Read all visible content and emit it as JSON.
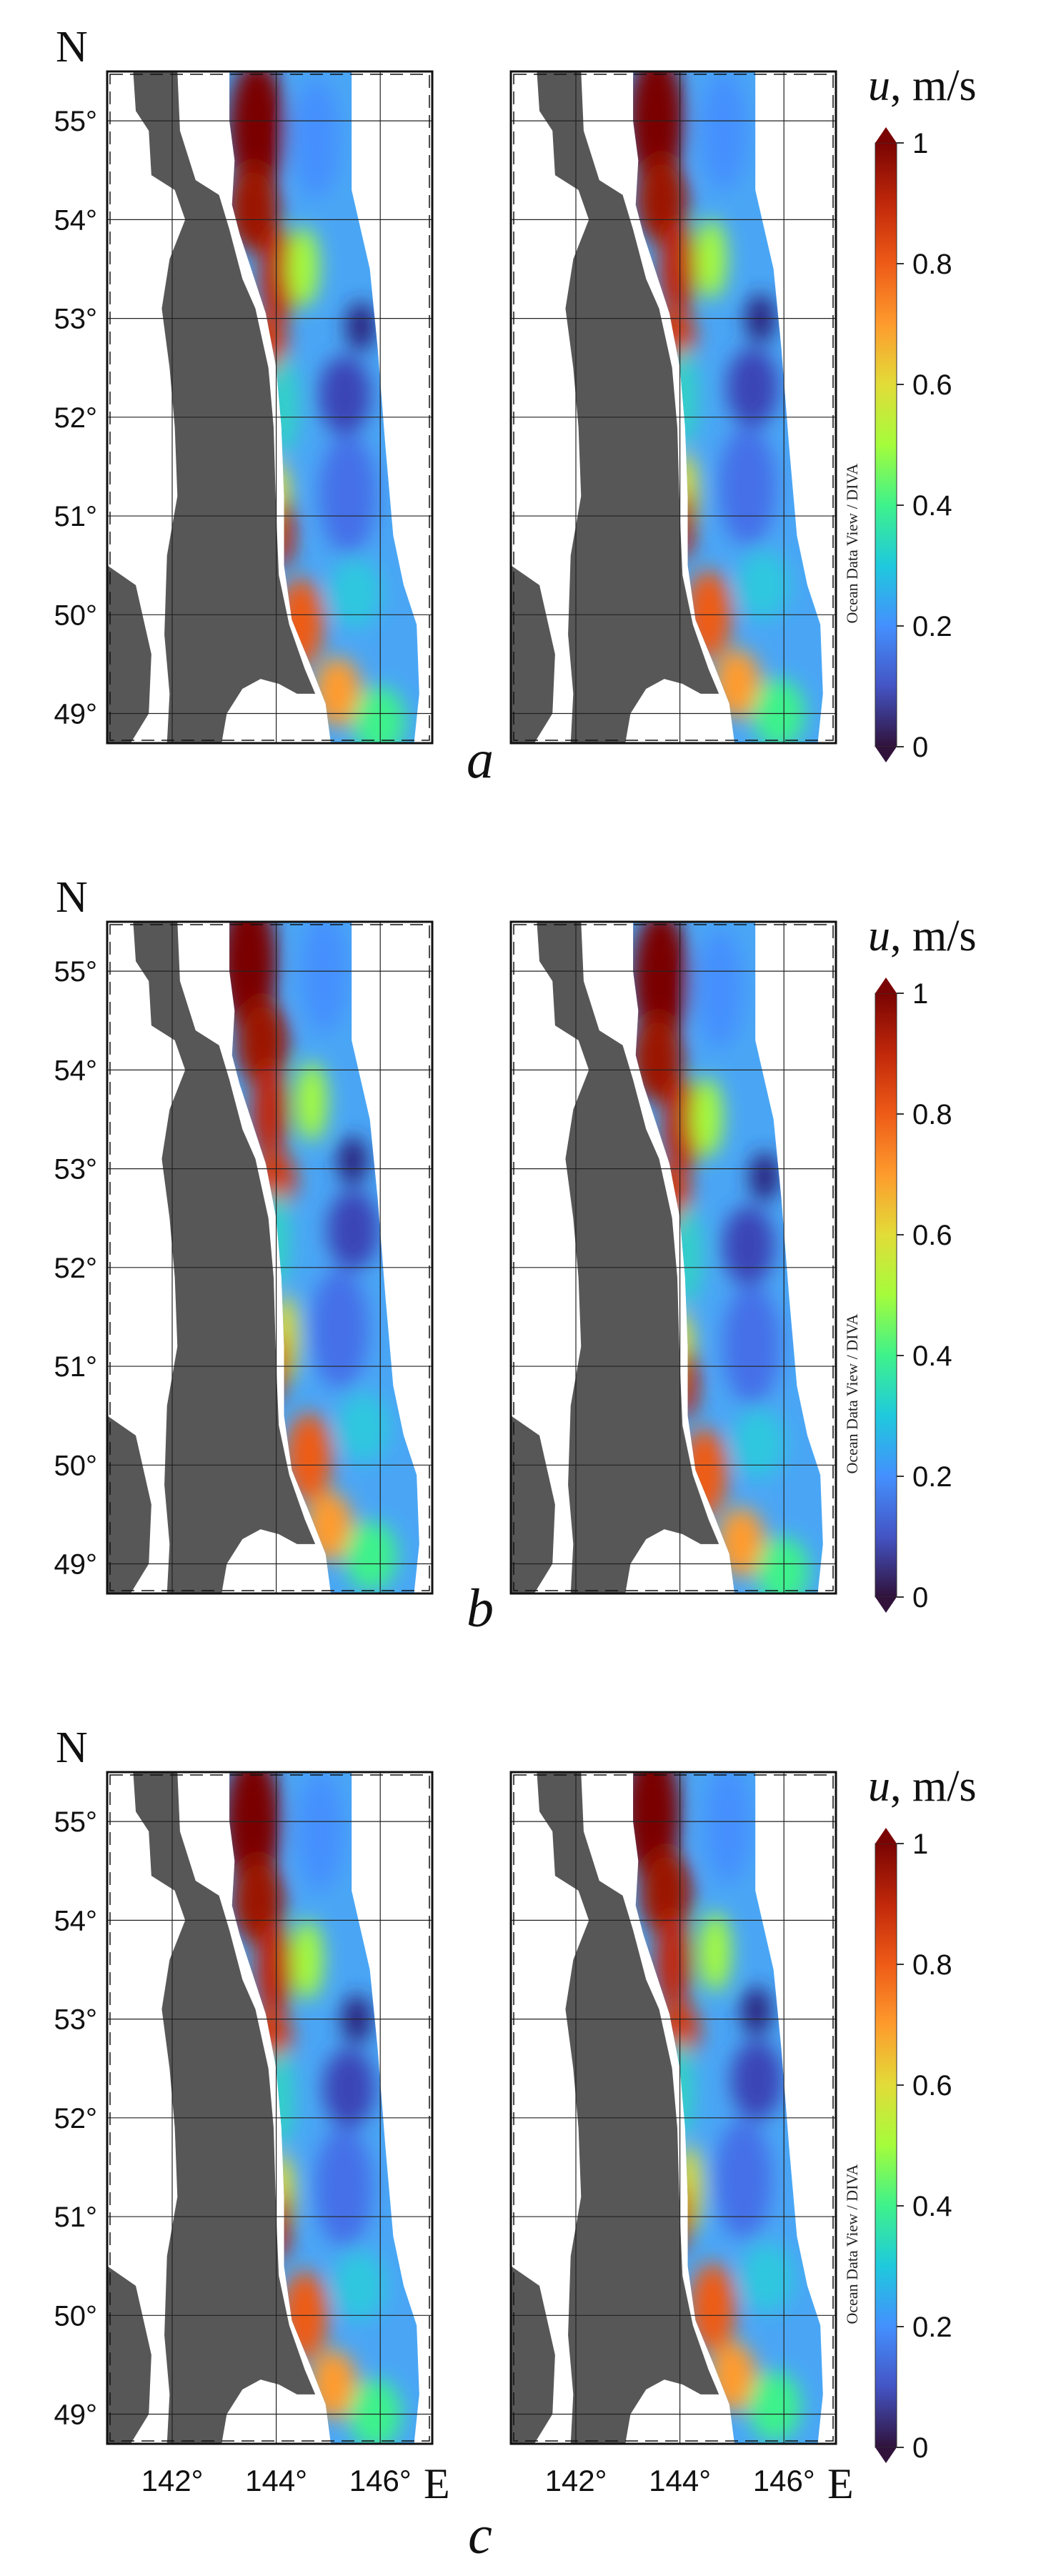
{
  "figure": {
    "north_label": "N",
    "east_label": "E",
    "lat_ticks": [
      "55°",
      "54°",
      "53°",
      "52°",
      "51°",
      "50°",
      "49°"
    ],
    "lon_ticks": [
      "142°",
      "144°",
      "146°",
      "142°",
      "144°",
      "146°"
    ],
    "credit": "Ocean Data View / DIVA",
    "colorbar": {
      "variable": "u",
      "unit": ",  m/s",
      "ticks": [
        "1",
        "0.8",
        "0.6",
        "0.4",
        "0.2",
        "0"
      ],
      "range": [
        0,
        1
      ],
      "colormap": "turbo"
    },
    "panel_labels": [
      "a",
      "b",
      "c"
    ]
  },
  "colors": {
    "land": "#575757",
    "grid": "#222222",
    "text": "#111111"
  }
}
